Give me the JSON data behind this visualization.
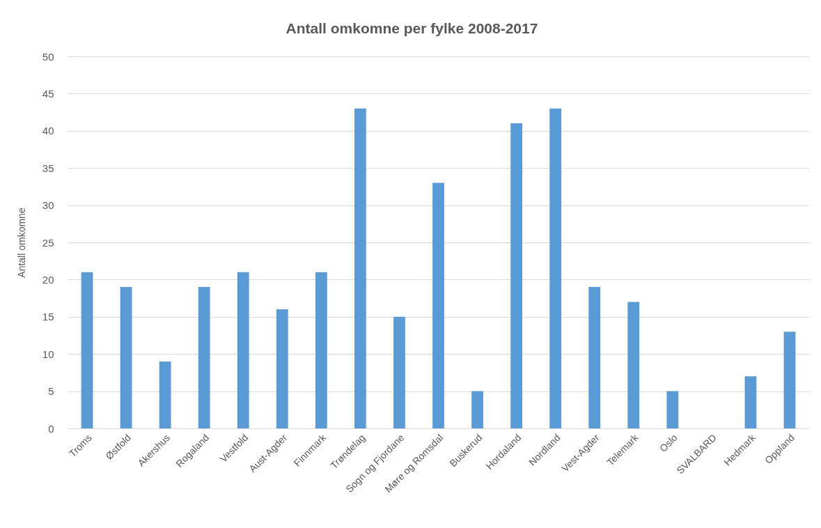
{
  "chart_data": {
    "type": "bar",
    "title": "Antall omkomne per fylke 2008-2017",
    "ylabel": "Antall omkomne",
    "categories": [
      "Troms",
      "Østfold",
      "Akershus",
      "Rogaland",
      "Vestfold",
      "Aust-Agder",
      "Finnmark",
      "Trøndelag",
      "Sogn og Fjordane",
      "Møre og Romsdal",
      "Buskerud",
      "Hordaland",
      "Nordland",
      "Vest-Agder",
      "Telemark",
      "Oslo",
      "SVALBARD",
      "Hedmark",
      "Oppland"
    ],
    "values": [
      21,
      19,
      9,
      19,
      21,
      16,
      21,
      43,
      15,
      33,
      5,
      41,
      43,
      19,
      17,
      5,
      0,
      7,
      13
    ],
    "color": "#5b9bd5",
    "ylim": [
      0,
      50
    ],
    "yticks": [
      0,
      5,
      10,
      15,
      20,
      25,
      30,
      35,
      40,
      45,
      50
    ],
    "grid": "y"
  }
}
